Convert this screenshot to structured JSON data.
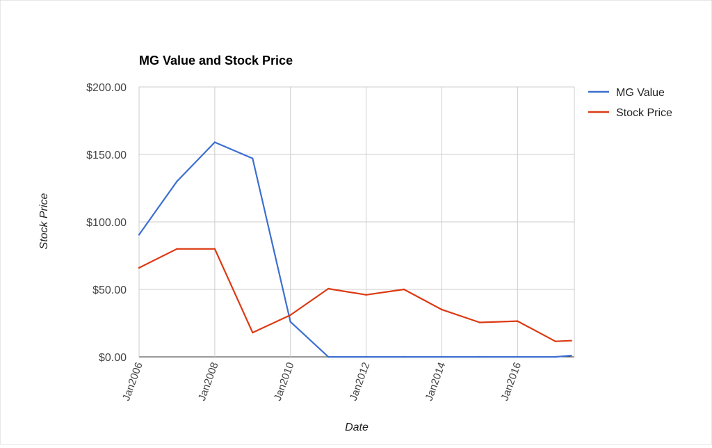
{
  "chart_data": {
    "type": "line",
    "title": "MG Value and Stock Price",
    "xlabel": "Date",
    "ylabel": "Stock Price",
    "x": [
      "Jan2006",
      "Jan2007",
      "Jan2008",
      "Jan2009",
      "Jan2010",
      "Jan2011",
      "Jan2012",
      "Jan2013",
      "Jan2014",
      "Jan2015",
      "Jan2016",
      "Jan2017",
      "Jun2017"
    ],
    "x_tick_labels": [
      "Jan2006",
      "Jan2008",
      "Jan2010",
      "Jan2012",
      "Jan2014",
      "Jan2016"
    ],
    "y_tick_labels": [
      "$0.00",
      "$50.00",
      "$100.00",
      "$150.00",
      "$200.00"
    ],
    "ylim": [
      0,
      200
    ],
    "grid": true,
    "legend_position": "right",
    "series": [
      {
        "name": "MG Value",
        "color": "#3c6fd0",
        "values": [
          90.5,
          130,
          159,
          147,
          26,
          0,
          0,
          0,
          0,
          0,
          0,
          0,
          1
        ]
      },
      {
        "name": "Stock Price",
        "color": "#dc3912",
        "values": [
          66,
          80,
          80,
          18,
          31,
          50.5,
          46,
          50,
          35,
          25.5,
          26.5,
          11.5,
          12
        ]
      }
    ]
  }
}
